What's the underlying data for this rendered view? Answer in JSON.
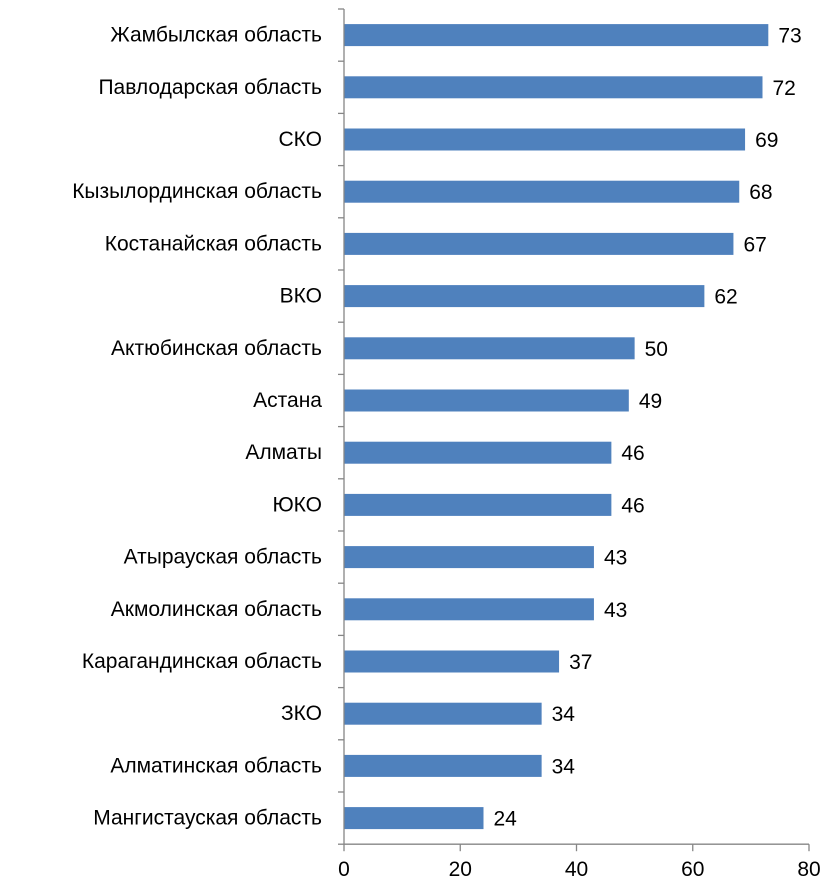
{
  "chart_data": {
    "type": "bar",
    "orientation": "horizontal",
    "categories": [
      "Жамбылская область",
      "Павлодарская область",
      "СКО",
      "Кызылординская область",
      "Костанайская область",
      "ВКО",
      "Актюбинская область",
      "Астана",
      "Алматы",
      "ЮКО",
      "Атырауская область",
      "Акмолинская область",
      "Карагандинская область",
      "ЗКО",
      "Алматинская область",
      "Мангистауская область"
    ],
    "values": [
      73,
      72,
      69,
      68,
      67,
      62,
      50,
      49,
      46,
      46,
      43,
      43,
      37,
      34,
      34,
      24
    ],
    "value_labels": [
      "73",
      "72",
      "69",
      "68",
      "67",
      "62",
      "50",
      "49",
      "46",
      "46",
      "43",
      "43",
      "37",
      "34",
      "34",
      "24"
    ],
    "xlim": [
      0,
      80
    ],
    "x_ticks": [
      "0",
      "20",
      "40",
      "60",
      "80"
    ],
    "title": "",
    "xlabel": "",
    "ylabel": "",
    "grid": false,
    "legend": "none",
    "bar_color": "#4F81BD"
  }
}
